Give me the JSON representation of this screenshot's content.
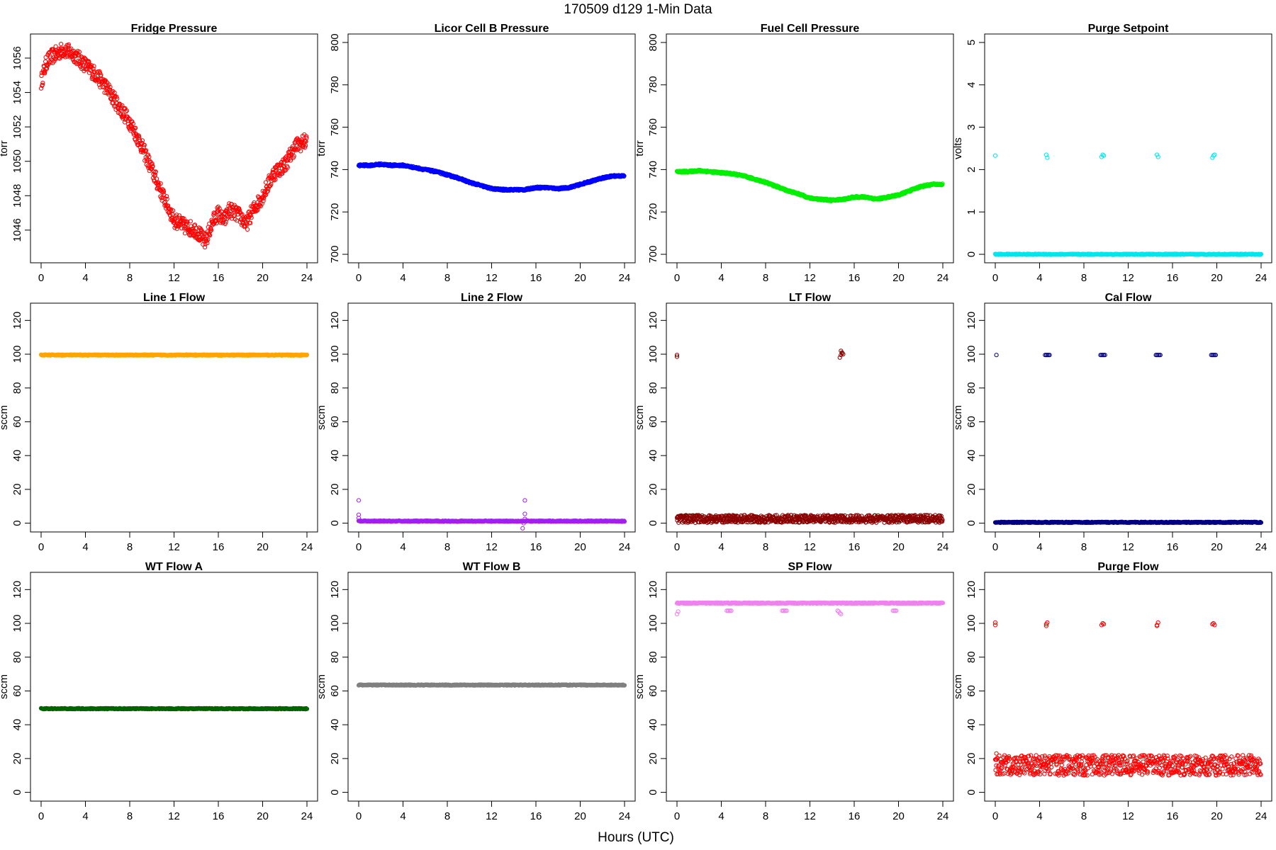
{
  "figure": {
    "title": "170509   d129   1-Min Data",
    "xlabel": "Hours (UTC)"
  },
  "chart_data": [
    {
      "type": "scatter",
      "title": "Fridge Pressure",
      "ylabel": "torr",
      "color": "#ff0000",
      "xlim": [
        -0.96,
        24.96
      ],
      "ylim": [
        1044.1,
        1057.4
      ],
      "xticks": [
        0,
        4,
        8,
        12,
        16,
        20,
        24
      ],
      "yticks": [
        1046,
        1048,
        1050,
        1052,
        1054,
        1056
      ],
      "series": [
        {
          "x": [
            0,
            0.5,
            1,
            1.5,
            2,
            3,
            4,
            5,
            6,
            7,
            8,
            9,
            10,
            11,
            12,
            13,
            14,
            14.8,
            15.5,
            16,
            16.5,
            17,
            18,
            18.5,
            19,
            20,
            21,
            22,
            23,
            24
          ],
          "y": [
            1054.6,
            1055.8,
            1056.1,
            1056.3,
            1056.5,
            1056.2,
            1055.6,
            1055.0,
            1054.2,
            1053.2,
            1052.3,
            1051.0,
            1049.5,
            1048.0,
            1046.6,
            1046.2,
            1046.0,
            1045.3,
            1046.5,
            1047.0,
            1046.5,
            1047.2,
            1046.8,
            1046.3,
            1047.0,
            1048.0,
            1049.3,
            1049.8,
            1050.9,
            1051.2
          ]
        }
      ]
    },
    {
      "type": "scatter",
      "title": "Licor Cell B Pressure",
      "ylabel": "torr",
      "color": "#0000ff",
      "xlim": [
        -0.96,
        24.96
      ],
      "ylim": [
        696,
        804
      ],
      "xticks": [
        0,
        4,
        8,
        12,
        16,
        20,
        24
      ],
      "yticks": [
        700,
        720,
        740,
        760,
        780,
        800
      ],
      "series": [
        {
          "x": [
            0,
            1,
            2,
            3,
            4,
            5,
            6,
            7,
            8,
            9,
            10,
            11,
            12,
            13,
            14,
            15,
            16,
            17,
            18,
            19,
            20,
            21,
            22,
            23,
            24
          ],
          "y": [
            742,
            742,
            742.5,
            742,
            742,
            741,
            740,
            739,
            737.5,
            736,
            734,
            732.5,
            731,
            730.5,
            730.5,
            730.5,
            731.5,
            731.5,
            731,
            731.5,
            733,
            734.5,
            736,
            737,
            737
          ]
        }
      ]
    },
    {
      "type": "scatter",
      "title": "Fuel Cell Pressure",
      "ylabel": "torr",
      "color": "#00ee00",
      "xlim": [
        -0.96,
        24.96
      ],
      "ylim": [
        696,
        804
      ],
      "xticks": [
        0,
        4,
        8,
        12,
        16,
        20,
        24
      ],
      "yticks": [
        700,
        720,
        740,
        760,
        780,
        800
      ],
      "series": [
        {
          "x": [
            0,
            1,
            2,
            3,
            4,
            5,
            6,
            7,
            8,
            9,
            10,
            11,
            12,
            13,
            14,
            15,
            16,
            17,
            18,
            19,
            20,
            21,
            22,
            23,
            24
          ],
          "y": [
            739,
            739,
            739.5,
            739,
            738.5,
            738,
            737,
            735.5,
            734,
            732,
            730,
            728.5,
            726.5,
            726,
            725.5,
            726,
            727,
            727,
            726,
            727,
            728,
            730,
            732,
            733,
            733
          ]
        }
      ]
    },
    {
      "type": "scatter",
      "title": "Purge Setpoint",
      "ylabel": "volts",
      "color": "#00e5ee",
      "xlim": [
        -0.96,
        24.96
      ],
      "ylim": [
        -0.2,
        5.2
      ],
      "xticks": [
        0,
        4,
        8,
        12,
        16,
        20,
        24
      ],
      "yticks": [
        0,
        1,
        2,
        3,
        4,
        5
      ],
      "baseline": 0,
      "series": [
        {
          "x": [
            0,
            4.6,
            4.7,
            9.6,
            9.7,
            9.8,
            14.6,
            14.7,
            19.6,
            19.7,
            19.8
          ],
          "y": [
            2.33,
            2.35,
            2.28,
            2.3,
            2.35,
            2.33,
            2.35,
            2.3,
            2.28,
            2.33,
            2.35
          ]
        }
      ]
    },
    {
      "type": "scatter",
      "title": "Line 1 Flow",
      "ylabel": "sccm",
      "color": "#ffa500",
      "xlim": [
        -0.96,
        24.96
      ],
      "ylim": [
        -5.2,
        130.2
      ],
      "xticks": [
        0,
        4,
        8,
        12,
        16,
        20,
        24
      ],
      "yticks": [
        0,
        20,
        40,
        60,
        80,
        100,
        120
      ],
      "baseline": 99.5,
      "series": [
        {
          "x": [],
          "y": []
        }
      ]
    },
    {
      "type": "scatter",
      "title": "Line 2 Flow",
      "ylabel": "sccm",
      "color": "#a020f0",
      "xlim": [
        -0.96,
        24.96
      ],
      "ylim": [
        -5.2,
        130.2
      ],
      "xticks": [
        0,
        4,
        8,
        12,
        16,
        20,
        24
      ],
      "yticks": [
        0,
        20,
        40,
        60,
        80,
        100,
        120
      ],
      "baseline": 1.2,
      "series": [
        {
          "x": [
            0,
            0,
            0,
            14.8,
            15,
            15,
            15,
            14.9
          ],
          "y": [
            13.5,
            5,
            3,
            -3,
            13.5,
            5.5,
            2.5,
            0
          ]
        }
      ]
    },
    {
      "type": "scatter",
      "title": "LT Flow",
      "ylabel": "sccm",
      "color": "#8b0000",
      "xlim": [
        -0.96,
        24.96
      ],
      "ylim": [
        -5.2,
        130.2
      ],
      "xticks": [
        0,
        4,
        8,
        12,
        16,
        20,
        24
      ],
      "yticks": [
        0,
        20,
        40,
        60,
        80,
        100,
        120
      ],
      "band": [
        0.3,
        4.8
      ],
      "series": [
        {
          "x": [
            0,
            0,
            14.7,
            14.8,
            14.9,
            15,
            14.8,
            14.9
          ],
          "y": [
            98.5,
            99.5,
            98,
            99.5,
            101,
            100,
            102,
            100.5
          ]
        }
      ]
    },
    {
      "type": "scatter",
      "title": "Cal Flow",
      "ylabel": "sccm",
      "color": "#000080",
      "xlim": [
        -0.96,
        24.96
      ],
      "ylim": [
        -5.2,
        130.2
      ],
      "xticks": [
        0,
        4,
        8,
        12,
        16,
        20,
        24
      ],
      "yticks": [
        0,
        20,
        40,
        60,
        80,
        100,
        120
      ],
      "baseline": 0.5,
      "series": [
        {
          "x": [
            0.1,
            4.5,
            4.6,
            4.7,
            4.8,
            4.9,
            9.5,
            9.6,
            9.7,
            9.8,
            9.9,
            14.5,
            14.6,
            14.7,
            14.8,
            14.9,
            19.5,
            19.6,
            19.7,
            19.8,
            19.9
          ],
          "y": [
            99.5,
            99.5,
            99.5,
            99.5,
            99.5,
            99.5,
            99.5,
            99.5,
            99.5,
            99.5,
            99.5,
            99.5,
            99.5,
            99.5,
            99.5,
            99.5,
            99.5,
            99.5,
            99.5,
            99.5,
            99.5
          ]
        }
      ]
    },
    {
      "type": "scatter",
      "title": "WT Flow A",
      "ylabel": "sccm",
      "color": "#006400",
      "xlim": [
        -0.96,
        24.96
      ],
      "ylim": [
        -5.2,
        130.2
      ],
      "xticks": [
        0,
        4,
        8,
        12,
        16,
        20,
        24
      ],
      "yticks": [
        0,
        20,
        40,
        60,
        80,
        100,
        120
      ],
      "baseline": 49.5,
      "series": [
        {
          "x": [],
          "y": []
        }
      ]
    },
    {
      "type": "scatter",
      "title": "WT Flow B",
      "ylabel": "sccm",
      "color": "#808080",
      "xlim": [
        -0.96,
        24.96
      ],
      "ylim": [
        -5.2,
        130.2
      ],
      "xticks": [
        0,
        4,
        8,
        12,
        16,
        20,
        24
      ],
      "yticks": [
        0,
        20,
        40,
        60,
        80,
        100,
        120
      ],
      "baseline": 63.5,
      "series": [
        {
          "x": [],
          "y": []
        }
      ]
    },
    {
      "type": "scatter",
      "title": "SP Flow",
      "ylabel": "sccm",
      "color": "#ee82ee",
      "xlim": [
        -0.96,
        24.96
      ],
      "ylim": [
        -5.2,
        130.2
      ],
      "xticks": [
        0,
        4,
        8,
        12,
        16,
        20,
        24
      ],
      "yticks": [
        0,
        20,
        40,
        60,
        80,
        100,
        120
      ],
      "baseline": 112,
      "series": [
        {
          "x": [
            0,
            0.1,
            4.5,
            4.6,
            4.7,
            4.8,
            4.9,
            9.5,
            9.6,
            9.7,
            9.8,
            9.9,
            14.5,
            14.6,
            14.7,
            14.8,
            19.5,
            19.6,
            19.7,
            19.8
          ],
          "y": [
            105.5,
            107,
            107.5,
            107.5,
            107.5,
            107.5,
            107.5,
            107.5,
            107.5,
            107.5,
            107.5,
            107.5,
            107.5,
            107,
            106,
            105.5,
            107.5,
            107.5,
            107.5,
            107.5
          ]
        }
      ]
    },
    {
      "type": "scatter",
      "title": "Purge Flow",
      "ylabel": "sccm",
      "color": "#ff0000",
      "xlim": [
        -0.96,
        24.96
      ],
      "ylim": [
        -5.2,
        130.2
      ],
      "xticks": [
        0,
        4,
        8,
        12,
        16,
        20,
        24
      ],
      "yticks": [
        0,
        20,
        40,
        60,
        80,
        100,
        120
      ],
      "band": [
        10,
        22
      ],
      "series": [
        {
          "x": [
            0,
            0,
            4.6,
            4.7,
            4.6,
            9.6,
            9.7,
            9.8,
            14.6,
            14.7,
            14.6,
            19.6,
            19.7,
            19.8,
            0.1
          ],
          "y": [
            99,
            100.5,
            99.5,
            100.5,
            98.5,
            99,
            100,
            99.5,
            99,
            100.5,
            98.5,
            99.5,
            100,
            99,
            23
          ]
        }
      ]
    }
  ]
}
